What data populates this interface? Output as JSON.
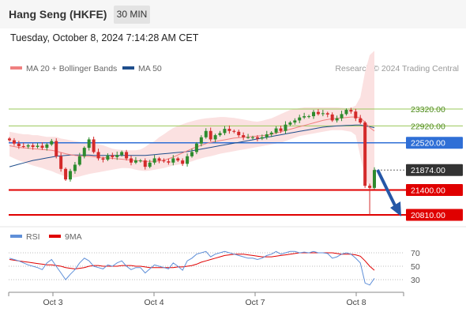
{
  "header": {
    "title": "Hang Seng (HKFE)",
    "interval": "30 MIN"
  },
  "datetime": "Tuesday, October 8, 2024 7:14:28 AM CET",
  "legend": {
    "ma20_label": "MA 20 + Bollinger Bands",
    "ma50_label": "MA 50",
    "credit": "Research © 2024 Trading Central"
  },
  "rsi_legend": {
    "rsi_label": "RSI",
    "ma_label": "9MA"
  },
  "colors": {
    "ma20": "#f08080",
    "ma50": "#1f4e8c",
    "bands_fill": "#fbe1e1",
    "resistance": "#9ac85a",
    "pivot": "#2f6fd6",
    "support": "#e00000",
    "current": "#333333",
    "candle_up": "#2e8b2e",
    "candle_down": "#d42a2a",
    "rsi": "#5f8fd8",
    "rsi_ma": "#e00000",
    "arrow": "#2557a7"
  },
  "chart_data": {
    "type": "candlestick",
    "x_ticks": [
      "Oct 3",
      "Oct 4",
      "Oct 7",
      "Oct 8"
    ],
    "ylim": [
      20650,
      24750
    ],
    "levels": [
      {
        "value": 23320,
        "label": "23320.00",
        "kind": "resistance"
      },
      {
        "value": 22920,
        "label": "22920.00",
        "kind": "resistance"
      },
      {
        "value": 22520,
        "label": "22520.00",
        "kind": "pivot"
      },
      {
        "value": 21874,
        "label": "21874.00",
        "kind": "current"
      },
      {
        "value": 21400,
        "label": "21400.00",
        "kind": "support"
      },
      {
        "value": 20810,
        "label": "20810.00",
        "kind": "support"
      }
    ],
    "close": [
      22580,
      22500,
      22440,
      22430,
      22460,
      22420,
      22450,
      22400,
      22480,
      22560,
      22200,
      21900,
      21650,
      21850,
      22000,
      22200,
      22400,
      22600,
      22300,
      22150,
      22120,
      22220,
      22180,
      22230,
      22300,
      22150,
      22050,
      22100,
      22100,
      21950,
      22050,
      22150,
      22100,
      22080,
      22050,
      22150,
      22100,
      22020,
      22200,
      22300,
      22500,
      22650,
      22800,
      22600,
      22700,
      22750,
      22850,
      22800,
      22780,
      22700,
      22650,
      22650,
      22650,
      22620,
      22650,
      22720,
      22760,
      22860,
      22800,
      22950,
      23000,
      23050,
      23120,
      23150,
      23150,
      23250,
      23200,
      23220,
      23190,
      23050,
      23100,
      23200,
      23300,
      23260,
      23100,
      23000,
      21500,
      21450,
      21874
    ],
    "ma20": [
      22450,
      22430,
      22410,
      22400,
      22390,
      22380,
      22370,
      22360,
      22350,
      22340,
      22320,
      22290,
      22260,
      22240,
      22220,
      22210,
      22200,
      22200,
      22190,
      22180,
      22170,
      22160,
      22150,
      22140,
      22130,
      22120,
      22110,
      22100,
      22090,
      22080,
      22080,
      22080,
      22090,
      22110,
      22140,
      22180,
      22230,
      22280,
      22330,
      22380,
      22420,
      22460,
      22500,
      22530,
      22550,
      22570,
      22590,
      22610,
      22630,
      22640,
      22650,
      22660,
      22670,
      22680,
      22690,
      22700,
      22720,
      22750,
      22780,
      22810,
      22840,
      22870,
      22900,
      22930,
      22960,
      22990,
      23020,
      23050,
      23070,
      23090,
      23100,
      23110,
      23120,
      23130,
      23130,
      23120,
      23000,
      22880,
      22800
    ],
    "ma50": [
      21950,
      21980,
      22010,
      22040,
      22070,
      22100,
      22120,
      22140,
      22160,
      22180,
      22200,
      22210,
      22220,
      22230,
      22230,
      22230,
      22230,
      22230,
      22220,
      22220,
      22220,
      22220,
      22220,
      22220,
      22220,
      22220,
      22220,
      22220,
      22220,
      22220,
      22230,
      22240,
      22250,
      22260,
      22270,
      22280,
      22290,
      22300,
      22310,
      22330,
      22350,
      22370,
      22390,
      22410,
      22430,
      22450,
      22470,
      22490,
      22510,
      22530,
      22550,
      22570,
      22590,
      22610,
      22630,
      22650,
      22670,
      22690,
      22710,
      22730,
      22750,
      22770,
      22790,
      22810,
      22830,
      22850,
      22870,
      22890,
      22900,
      22910,
      22920,
      22925,
      22930,
      22935,
      22940,
      22940,
      22920,
      22900,
      22880
    ],
    "bb_upper_pre": [
      22780,
      22760,
      22740,
      22720,
      22720,
      22700,
      22700,
      22680,
      22660,
      22660,
      22660,
      22620,
      22600,
      22580,
      22560,
      22540,
      22520,
      22500,
      22500,
      22480,
      22460,
      22420,
      22380,
      22360,
      22350,
      22340,
      22340,
      22340,
      22360,
      22420,
      22500,
      22560,
      22650,
      22720,
      22800,
      22870,
      22920,
      22960,
      23000,
      23030,
      23060,
      23080,
      23100,
      23110,
      23120,
      23130,
      23130,
      23120,
      23110,
      23090,
      23070,
      23050,
      23030,
      23020,
      23040,
      23070,
      23100,
      23150,
      23200,
      23250,
      23300,
      23320,
      23340,
      23360,
      23360,
      23360,
      23360,
      23360,
      23360,
      23360,
      23360,
      23350,
      23340,
      23350,
      23400,
      23600,
      24200,
      24600,
      24700
    ],
    "bb_lower_pre": [
      22200,
      22150,
      22100,
      22060,
      22020,
      21980,
      21950,
      21920,
      21880,
      21850,
      21800,
      21760,
      21720,
      21700,
      21700,
      21720,
      21750,
      21780,
      21800,
      21820,
      21840,
      21860,
      21880,
      21900,
      21920,
      21920,
      21910,
      21880,
      21860,
      21850,
      21860,
      21880,
      21900,
      21920,
      21950,
      21980,
      22000,
      22020,
      22050,
      22080,
      22120,
      22150,
      22180,
      22200,
      22230,
      22260,
      22280,
      22300,
      22320,
      22340,
      22360,
      22380,
      22400,
      22420,
      22440,
      22460,
      22480,
      22500,
      22520,
      22560,
      22600,
      22640,
      22680,
      22700,
      22720,
      22740,
      22760,
      22780,
      22800,
      22820,
      22820,
      22820,
      22800,
      22780,
      22700,
      22200,
      21700,
      21450,
      21380
    ],
    "rsi_ticks": [
      70,
      50,
      30
    ],
    "rsi_ylim": [
      10,
      90
    ],
    "rsi": [
      62,
      60,
      58,
      55,
      52,
      50,
      48,
      45,
      55,
      60,
      50,
      40,
      30,
      38,
      45,
      55,
      62,
      58,
      50,
      48,
      46,
      52,
      50,
      55,
      58,
      50,
      45,
      48,
      48,
      40,
      46,
      52,
      50,
      48,
      46,
      55,
      50,
      44,
      58,
      62,
      68,
      70,
      72,
      64,
      68,
      70,
      72,
      70,
      68,
      66,
      64,
      62,
      62,
      60,
      62,
      66,
      68,
      72,
      68,
      70,
      72,
      72,
      70,
      71,
      70,
      72,
      70,
      70,
      69,
      62,
      64,
      68,
      70,
      68,
      62,
      55,
      25,
      22,
      32
    ],
    "rsi_ma": [
      60,
      59,
      58,
      57,
      56,
      55,
      54,
      53,
      52,
      52,
      51,
      50,
      48,
      47,
      46,
      47,
      48,
      50,
      51,
      51,
      50,
      50,
      50,
      50,
      51,
      51,
      51,
      50,
      50,
      49,
      48,
      48,
      48,
      48,
      48,
      48,
      49,
      49,
      50,
      51,
      53,
      56,
      58,
      60,
      62,
      64,
      66,
      67,
      68,
      68,
      68,
      67,
      66,
      65,
      64,
      64,
      64,
      65,
      66,
      67,
      68,
      69,
      70,
      70,
      70,
      70,
      70,
      70,
      70,
      70,
      69,
      68,
      68,
      68,
      67,
      65,
      58,
      50,
      44
    ]
  }
}
